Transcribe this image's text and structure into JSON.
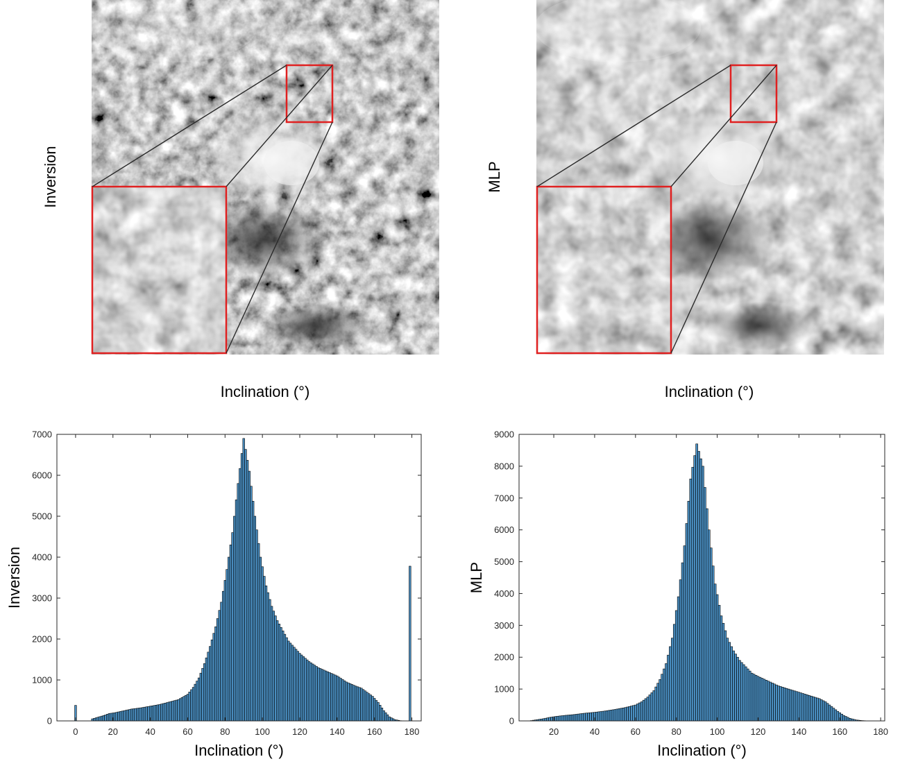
{
  "panels": {
    "inversion_map": {
      "ylabel": "Inversion",
      "xlabel": "Inclination (°)"
    },
    "mlp_map": {
      "ylabel": "MLP",
      "xlabel": "Inclination (°)"
    }
  },
  "colors": {
    "bar_fill": "#4a8fc2",
    "bar_edge": "#000000",
    "zoom_box": "#e02020",
    "axes": "#262626"
  },
  "chart_data": [
    {
      "type": "bar",
      "name": "inversion-histogram",
      "title": "",
      "xlabel": "Inclination (°)",
      "ylabel": "Inversion",
      "xlim": [
        -10,
        185
      ],
      "ylim": [
        0,
        7000
      ],
      "xticks": [
        0,
        20,
        40,
        60,
        80,
        100,
        120,
        140,
        160,
        180
      ],
      "yticks": [
        0,
        1000,
        2000,
        3000,
        4000,
        5000,
        6000,
        7000
      ],
      "bin_width": 1,
      "bins": {
        "x": [
          0,
          9,
          12,
          15,
          18,
          21,
          25,
          30,
          35,
          40,
          45,
          50,
          55,
          60,
          63,
          66,
          69,
          72,
          75,
          78,
          81,
          84,
          87,
          90,
          93,
          96,
          99,
          102,
          105,
          108,
          111,
          114,
          117,
          120,
          125,
          130,
          135,
          140,
          145,
          150,
          153,
          156,
          159,
          162,
          165,
          168,
          171,
          174,
          178,
          179
        ],
        "y": [
          380,
          50,
          90,
          130,
          180,
          200,
          240,
          290,
          320,
          360,
          400,
          460,
          520,
          650,
          820,
          1050,
          1400,
          1820,
          2300,
          2900,
          3700,
          4600,
          5800,
          6900,
          6100,
          5000,
          4000,
          3300,
          2800,
          2450,
          2200,
          1950,
          1800,
          1650,
          1450,
          1300,
          1200,
          1100,
          950,
          850,
          800,
          700,
          600,
          450,
          250,
          100,
          30,
          5,
          0,
          3780
        ]
      }
    },
    {
      "type": "bar",
      "name": "mlp-histogram",
      "title": "",
      "xlabel": "Inclination (°)",
      "ylabel": "MLP",
      "xlim": [
        3,
        182
      ],
      "ylim": [
        0,
        9000
      ],
      "xticks": [
        20,
        40,
        60,
        80,
        100,
        120,
        140,
        160,
        180
      ],
      "yticks": [
        0,
        1000,
        2000,
        3000,
        4000,
        5000,
        6000,
        7000,
        8000,
        9000
      ],
      "bin_width": 1,
      "bins": {
        "x": [
          9,
          12,
          15,
          18,
          21,
          25,
          30,
          35,
          40,
          45,
          50,
          55,
          60,
          63,
          66,
          69,
          72,
          75,
          78,
          81,
          84,
          87,
          90,
          93,
          96,
          99,
          102,
          105,
          108,
          111,
          114,
          117,
          120,
          125,
          130,
          135,
          140,
          145,
          150,
          153,
          156,
          159,
          162,
          165,
          168,
          171,
          174
        ],
        "y": [
          10,
          40,
          70,
          110,
          140,
          170,
          200,
          240,
          270,
          310,
          360,
          420,
          500,
          600,
          750,
          950,
          1300,
          1800,
          2600,
          3900,
          5500,
          7600,
          8700,
          8000,
          6000,
          4300,
          3300,
          2600,
          2200,
          1900,
          1700,
          1500,
          1400,
          1250,
          1100,
          1000,
          900,
          800,
          700,
          600,
          450,
          300,
          170,
          80,
          30,
          10,
          0
        ]
      }
    }
  ]
}
